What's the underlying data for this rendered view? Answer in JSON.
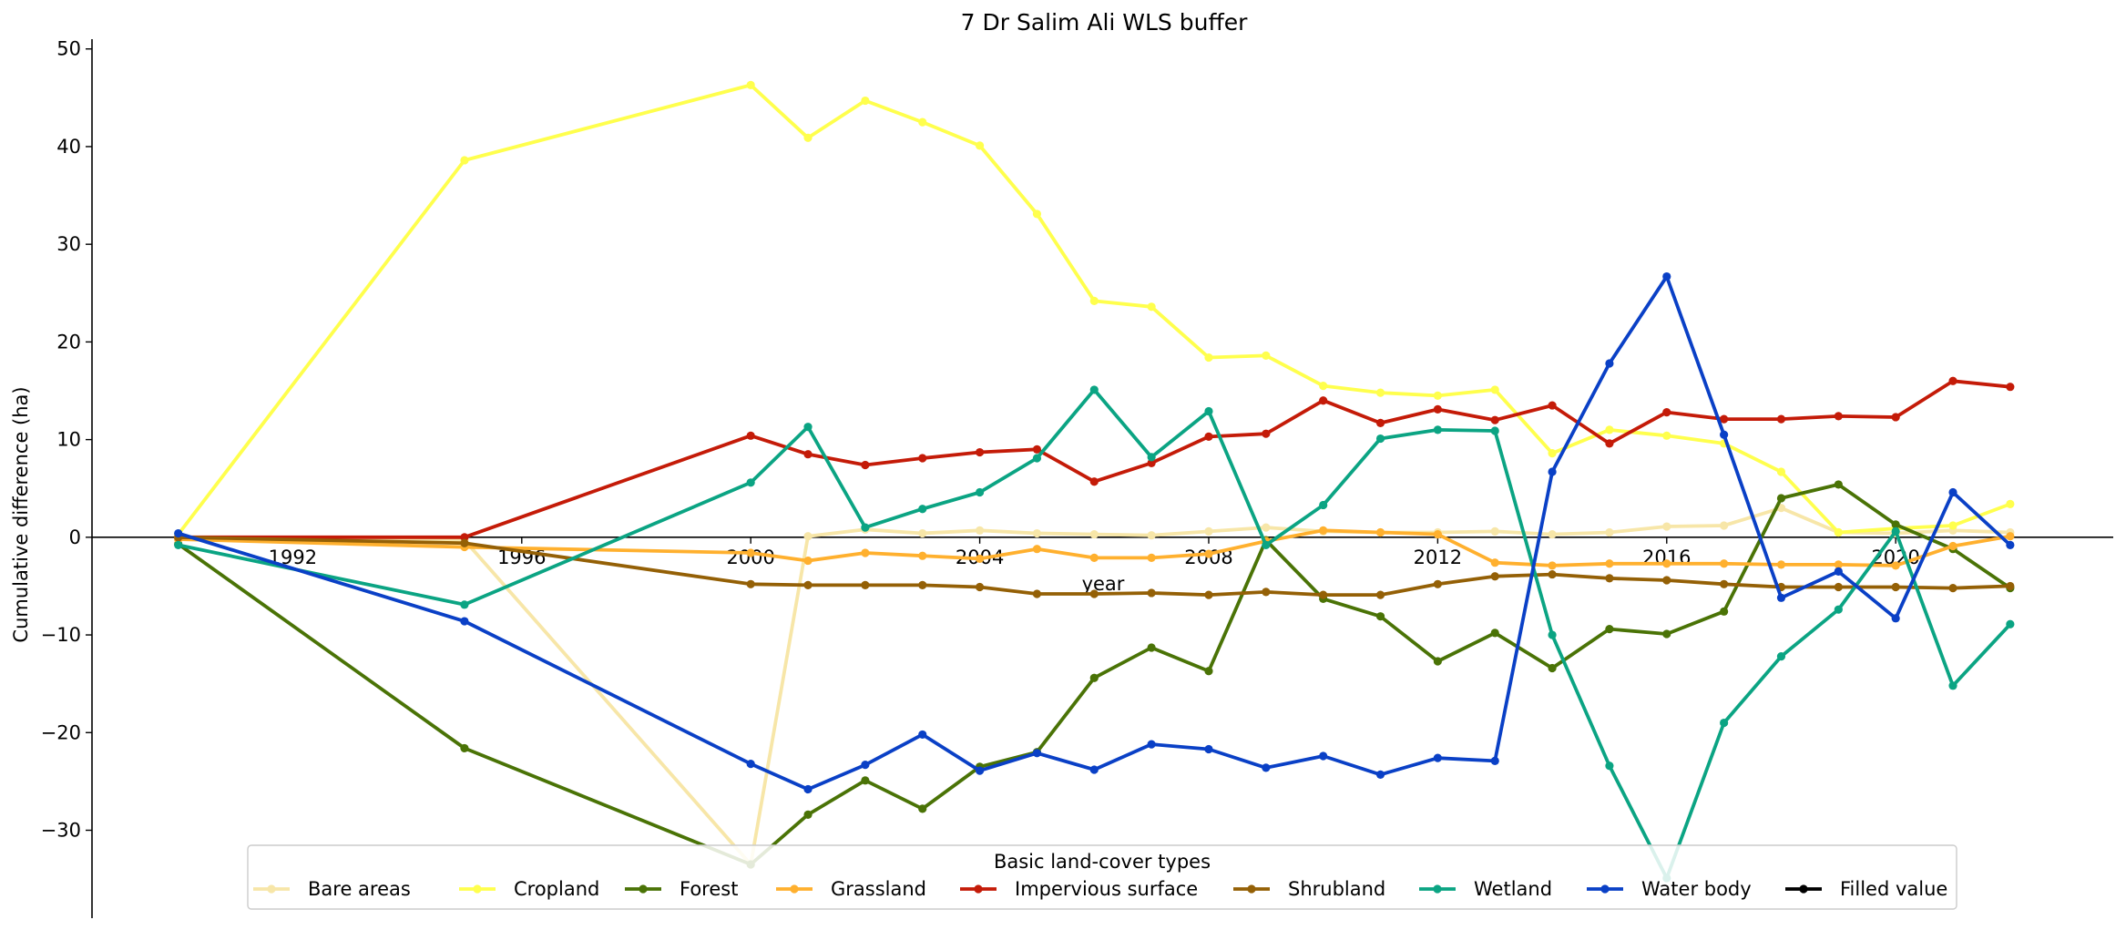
{
  "chart_data": {
    "type": "line",
    "title": "7 Dr Salim Ali WLS buffer",
    "xlabel": "year",
    "ylabel": "Cumulative difference (ha)",
    "xlim": [
      1988,
      2023.8
    ],
    "ylim": [
      -39,
      51
    ],
    "xticks": [
      1992,
      1996,
      2000,
      2004,
      2008,
      2012,
      2016,
      2020
    ],
    "yticks": [
      -30,
      -20,
      -10,
      0,
      10,
      20,
      30,
      40,
      50
    ],
    "grid": false,
    "legend": {
      "title": "Basic land-cover types",
      "placement": "bottom-center",
      "entries": [
        "Bare areas",
        "Cropland",
        "Forest",
        "Grassland",
        "Impervious surface",
        "Shrubland",
        "Wetland",
        "Water body",
        "Filled value"
      ]
    },
    "series": [
      {
        "name": "Bare areas",
        "color": "#f7e6a8",
        "x": [
          1990,
          1995,
          2000,
          2001,
          2002,
          2003,
          2004,
          2005,
          2006,
          2007,
          2008,
          2009,
          2010,
          2011,
          2012,
          2013,
          2014,
          2015,
          2016,
          2017,
          2018,
          2019,
          2020,
          2021,
          2022
        ],
        "y": [
          0,
          -0.3,
          -33.5,
          0.1,
          0.8,
          0.4,
          0.7,
          0.4,
          0.3,
          0.2,
          0.6,
          1.0,
          0.6,
          0.5,
          0.5,
          0.6,
          0.3,
          0.5,
          1.1,
          1.2,
          3.0,
          0.5,
          0.4,
          0.7,
          0.5
        ]
      },
      {
        "name": "Cropland",
        "color": "#ffff4d",
        "x": [
          1990,
          1995,
          2000,
          2001,
          2002,
          2003,
          2004,
          2005,
          2006,
          2007,
          2008,
          2009,
          2010,
          2011,
          2012,
          2013,
          2014,
          2015,
          2016,
          2017,
          2018,
          2019,
          2020,
          2021,
          2022
        ],
        "y": [
          0.3,
          38.6,
          46.3,
          40.9,
          44.7,
          42.5,
          40.1,
          33.1,
          24.2,
          23.6,
          18.4,
          18.6,
          15.5,
          14.8,
          14.5,
          15.1,
          8.6,
          11.0,
          10.4,
          9.6,
          6.7,
          0.5,
          0.9,
          1.2,
          3.4
        ]
      },
      {
        "name": "Forest",
        "color": "#4a7306",
        "x": [
          1990,
          1995,
          2000,
          2001,
          2002,
          2003,
          2004,
          2005,
          2006,
          2007,
          2008,
          2009,
          2010,
          2011,
          2012,
          2013,
          2014,
          2015,
          2016,
          2017,
          2018,
          2019,
          2020,
          2021,
          2022
        ],
        "y": [
          -0.7,
          -21.6,
          -33.5,
          -28.4,
          -24.9,
          -27.8,
          -23.5,
          -22.0,
          -14.4,
          -11.3,
          -13.7,
          -0.3,
          -6.3,
          -8.1,
          -12.7,
          -9.8,
          -13.4,
          -9.4,
          -9.9,
          -7.6,
          4.0,
          5.4,
          1.3,
          -1.2,
          -5.2
        ]
      },
      {
        "name": "Grassland",
        "color": "#ffb02e",
        "x": [
          1990,
          1995,
          2000,
          2001,
          2002,
          2003,
          2004,
          2005,
          2006,
          2007,
          2008,
          2009,
          2010,
          2011,
          2012,
          2013,
          2014,
          2015,
          2016,
          2017,
          2018,
          2019,
          2020,
          2021,
          2022
        ],
        "y": [
          -0.2,
          -1.0,
          -1.6,
          -2.4,
          -1.6,
          -1.9,
          -2.2,
          -1.2,
          -2.1,
          -2.1,
          -1.7,
          -0.4,
          0.7,
          0.5,
          0.3,
          -2.6,
          -2.9,
          -2.7,
          -2.7,
          -2.7,
          -2.8,
          -2.8,
          -2.9,
          -0.9,
          0.1
        ]
      },
      {
        "name": "Impervious surface",
        "color": "#c41b08",
        "x": [
          1990,
          1995,
          2000,
          2001,
          2002,
          2003,
          2004,
          2005,
          2006,
          2007,
          2008,
          2009,
          2010,
          2011,
          2012,
          2013,
          2014,
          2015,
          2016,
          2017,
          2018,
          2019,
          2020,
          2021,
          2022
        ],
        "y": [
          0,
          0,
          10.4,
          8.5,
          7.4,
          8.1,
          8.7,
          9.0,
          5.7,
          7.6,
          10.3,
          10.6,
          14.0,
          11.7,
          13.1,
          12.0,
          13.5,
          9.6,
          12.8,
          12.1,
          12.1,
          12.4,
          12.3,
          16.0,
          15.4
        ]
      },
      {
        "name": "Shrubland",
        "color": "#946006",
        "x": [
          1990,
          1995,
          2000,
          2001,
          2002,
          2003,
          2004,
          2005,
          2006,
          2007,
          2008,
          2009,
          2010,
          2011,
          2012,
          2013,
          2014,
          2015,
          2016,
          2017,
          2018,
          2019,
          2020,
          2021,
          2022
        ],
        "y": [
          0,
          -0.6,
          -4.8,
          -4.9,
          -4.9,
          -4.9,
          -5.1,
          -5.8,
          -5.8,
          -5.7,
          -5.9,
          -5.6,
          -5.9,
          -5.9,
          -4.8,
          -4.0,
          -3.8,
          -4.2,
          -4.4,
          -4.8,
          -5.1,
          -5.1,
          -5.1,
          -5.2,
          -5.0
        ]
      },
      {
        "name": "Wetland",
        "color": "#0ba483",
        "x": [
          1990,
          1995,
          2000,
          2001,
          2002,
          2003,
          2004,
          2005,
          2006,
          2007,
          2008,
          2009,
          2010,
          2011,
          2012,
          2013,
          2014,
          2015,
          2016,
          2017,
          2018,
          2019,
          2020,
          2021,
          2022
        ],
        "y": [
          -0.8,
          -6.9,
          5.6,
          11.3,
          1.0,
          2.9,
          4.6,
          8.1,
          15.1,
          8.2,
          12.9,
          -0.8,
          3.3,
          10.1,
          11.0,
          10.9,
          -10.0,
          -23.4,
          -34.9,
          -19.0,
          -12.2,
          -7.4,
          0.6,
          -15.2,
          -8.9
        ]
      },
      {
        "name": "Water body",
        "color": "#0a40c6",
        "x": [
          1990,
          1995,
          2000,
          2001,
          2002,
          2003,
          2004,
          2005,
          2006,
          2007,
          2008,
          2009,
          2010,
          2011,
          2012,
          2013,
          2014,
          2015,
          2016,
          2017,
          2018,
          2019,
          2020,
          2021,
          2022
        ],
        "y": [
          0.4,
          -8.6,
          -23.2,
          -25.8,
          -23.3,
          -20.2,
          -23.9,
          -22.1,
          -23.8,
          -21.2,
          -21.7,
          -23.6,
          -22.4,
          -24.3,
          -22.6,
          -22.9,
          6.7,
          17.8,
          26.7,
          10.5,
          -6.2,
          -3.5,
          -8.3,
          4.6,
          -0.8
        ]
      },
      {
        "name": "Filled value",
        "color": "#000000",
        "x": [],
        "y": []
      }
    ]
  }
}
